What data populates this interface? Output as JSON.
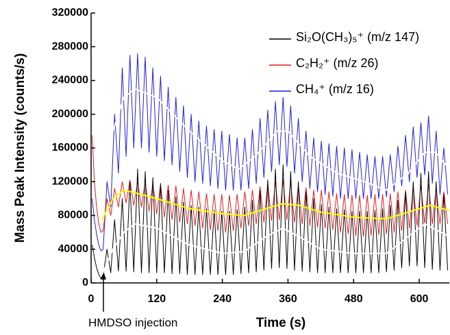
{
  "chart_data": {
    "type": "line",
    "y_label": "Mass Peak Intensity (counts/s)",
    "x_label": "Time (s)",
    "annotation": "HMDSO injection",
    "xlim": [
      0,
      655
    ],
    "xticks": [
      0,
      120,
      240,
      360,
      480,
      600
    ],
    "ylim": [
      0,
      320000
    ],
    "yticks": [
      0,
      40000,
      80000,
      120000,
      160000,
      200000,
      240000,
      280000,
      320000
    ],
    "x": [
      2,
      6,
      10,
      14,
      18,
      22,
      29,
      36,
      43,
      50,
      57,
      64,
      71,
      78,
      85,
      92,
      99,
      106,
      113,
      120,
      127,
      134,
      141,
      148,
      155,
      162,
      169,
      176,
      183,
      190,
      197,
      204,
      211,
      218,
      225,
      232,
      239,
      246,
      253,
      260,
      267,
      274,
      281,
      288,
      295,
      302,
      309,
      316,
      323,
      330,
      337,
      344,
      351,
      358,
      365,
      372,
      379,
      386,
      393,
      400,
      407,
      414,
      421,
      428,
      435,
      442,
      449,
      456,
      463,
      470,
      477,
      484,
      491,
      498,
      505,
      512,
      519,
      526,
      533,
      540,
      547,
      554,
      561,
      568,
      575,
      582,
      589,
      596,
      603,
      610,
      617,
      624,
      631,
      638,
      645,
      652
    ],
    "series": [
      {
        "name": "Si₂O(CH₃)₅⁺ (m/z 147)",
        "color": "#000000",
        "values": [
          45000,
          30000,
          18000,
          10000,
          5000,
          8000,
          40000,
          12000,
          75000,
          14000,
          100000,
          14000,
          120000,
          13000,
          135000,
          12000,
          132000,
          12000,
          125000,
          12000,
          118000,
          12000,
          110000,
          11000,
          102000,
          11000,
          96000,
          10000,
          92000,
          10000,
          90000,
          10000,
          88000,
          10000,
          86000,
          10000,
          85000,
          10000,
          85000,
          10000,
          87000,
          11000,
          90000,
          12000,
          98000,
          13000,
          110000,
          15000,
          122000,
          17000,
          135000,
          18000,
          140000,
          17000,
          132000,
          15000,
          120000,
          14000,
          108000,
          13000,
          100000,
          12000,
          93000,
          12000,
          90000,
          12000,
          88000,
          12000,
          87000,
          12000,
          85000,
          12000,
          85000,
          12000,
          85000,
          12000,
          86000,
          12000,
          88000,
          13000,
          92000,
          15000,
          98000,
          18000,
          108000,
          20000,
          120000,
          20000,
          130000,
          18000,
          132000,
          16000,
          120000,
          15000,
          105000,
          15000
        ]
      },
      {
        "name": "C₂H₂⁺ (m/z 26)",
        "color": "#e41a1c",
        "values": [
          175000,
          120000,
          90000,
          70000,
          60000,
          62000,
          100000,
          80000,
          112000,
          90000,
          120000,
          95000,
          122000,
          92000,
          120000,
          90000,
          120000,
          85000,
          118000,
          82000,
          117000,
          78000,
          116000,
          75000,
          115000,
          72000,
          112000,
          70000,
          110000,
          68000,
          108000,
          65000,
          106000,
          63000,
          105000,
          62000,
          105000,
          60000,
          104000,
          62000,
          105000,
          65000,
          108000,
          68000,
          110000,
          70000,
          114000,
          72000,
          118000,
          74000,
          120000,
          75000,
          122000,
          75000,
          120000,
          72000,
          116000,
          70000,
          113000,
          68000,
          110000,
          66000,
          110000,
          65000,
          108000,
          63000,
          106000,
          60000,
          105000,
          58000,
          104000,
          56000,
          104000,
          55000,
          104000,
          56000,
          105000,
          57000,
          105000,
          58000,
          106000,
          60000,
          108000,
          62000,
          110000,
          65000,
          114000,
          68000,
          116000,
          70000,
          117000,
          70000,
          113000,
          70000,
          108000,
          70000
        ]
      },
      {
        "name": "CH₄⁺ (m/z 16)",
        "color": "#1f1fd6",
        "values": [
          100000,
          75000,
          58000,
          45000,
          38000,
          40000,
          120000,
          90000,
          200000,
          130000,
          255000,
          150000,
          270000,
          160000,
          272000,
          160000,
          268000,
          155000,
          255000,
          150000,
          245000,
          145000,
          232000,
          140000,
          220000,
          132000,
          210000,
          125000,
          200000,
          120000,
          192000,
          118000,
          186000,
          115000,
          182000,
          112000,
          180000,
          110000,
          176000,
          110000,
          172000,
          110000,
          172000,
          112000,
          182000,
          118000,
          195000,
          125000,
          205000,
          132000,
          215000,
          140000,
          220000,
          138000,
          210000,
          130000,
          195000,
          120000,
          180000,
          112000,
          172000,
          108000,
          168000,
          105000,
          165000,
          103000,
          162000,
          100000,
          160000,
          100000,
          158000,
          100000,
          155000,
          100000,
          152000,
          100000,
          150000,
          100000,
          150000,
          102000,
          152000,
          108000,
          162000,
          115000,
          175000,
          120000,
          185000,
          125000,
          190000,
          128000,
          198000,
          118000,
          180000,
          105000,
          160000,
          105000
        ]
      },
      {
        "color": "#ffffff",
        "x": [
          20,
          40,
          60,
          80,
          120,
          180,
          240,
          280,
          320,
          350,
          380,
          420,
          480,
          540,
          580,
          610,
          655
        ],
        "values": [
          10000,
          40000,
          60000,
          70000,
          65000,
          45000,
          35000,
          37000,
          55000,
          65000,
          55000,
          40000,
          35000,
          35000,
          55000,
          70000,
          55000
        ]
      },
      {
        "color": "#ffff00",
        "x": [
          20,
          40,
          60,
          80,
          120,
          180,
          240,
          280,
          320,
          350,
          380,
          420,
          480,
          540,
          580,
          620,
          655
        ],
        "values": [
          75000,
          100000,
          110000,
          107000,
          100000,
          88000,
          82000,
          80000,
          88000,
          94000,
          92000,
          84000,
          78000,
          76000,
          84000,
          92000,
          86000
        ]
      },
      {
        "color": "#ffffff",
        "x": [
          20,
          40,
          60,
          80,
          120,
          180,
          240,
          270,
          300,
          340,
          360,
          400,
          450,
          500,
          540,
          580,
          610,
          630,
          655
        ],
        "values": [
          90000,
          180000,
          220000,
          230000,
          220000,
          180000,
          145000,
          135000,
          150000,
          180000,
          180000,
          150000,
          130000,
          120000,
          110000,
          130000,
          155000,
          155000,
          135000
        ]
      }
    ]
  }
}
